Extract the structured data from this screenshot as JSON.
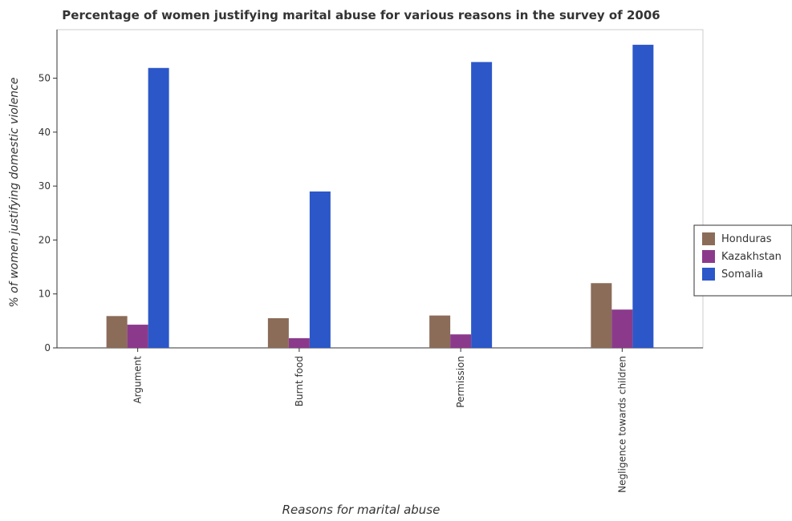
{
  "chart_data": {
    "type": "bar",
    "title": "Percentage of women justifying marital abuse for various reasons in the survey of 2006",
    "xlabel": "Reasons for marital abuse",
    "ylabel": "% of women justifying domestic violence",
    "categories": [
      "Argument",
      "Burnt food",
      "Permission",
      "Negligence towards children"
    ],
    "series": [
      {
        "name": "Honduras",
        "color": "#8b6c59",
        "values": [
          5.9,
          5.5,
          6.0,
          12.0
        ]
      },
      {
        "name": "Kazakhstan",
        "color": "#8b3a8b",
        "values": [
          4.3,
          1.8,
          2.5,
          7.1
        ]
      },
      {
        "name": "Somalia",
        "color": "#2c57c9",
        "values": [
          51.9,
          29.0,
          53.0,
          56.2
        ]
      }
    ],
    "ylim": [
      0,
      59
    ],
    "yticks": [
      0,
      10,
      20,
      30,
      40,
      50
    ],
    "grid": false,
    "legend": "right"
  }
}
